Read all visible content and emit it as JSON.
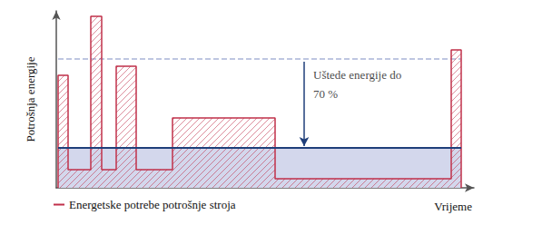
{
  "chart_data": {
    "type": "line",
    "x_label": "Vrijeme",
    "y_label": "Potrošnja energije",
    "xlim": [
      0,
      460
    ],
    "ylim": [
      0,
      195
    ],
    "xticks": [],
    "yticks": [],
    "tick_labels": false,
    "grid": false,
    "legend": "bottom left",
    "series": [
      {
        "type": "area",
        "color": "#1f3f7a",
        "x": [
          2,
          446
        ],
        "values": [
          44,
          44
        ]
      },
      {
        "type": "line",
        "color": "#a9b4d8",
        "line_style": "dashed",
        "x": [
          2,
          446
        ],
        "values": [
          142,
          142
        ]
      },
      {
        "type": "step",
        "name": "Energetske potrebe potrošnje stroja",
        "color": "#c0304a",
        "bins": [
          2,
          13,
          38,
          50,
          66,
          88,
          128,
          241,
          435,
          446
        ],
        "values": [
          124,
          20,
          189,
          20,
          134,
          20,
          77,
          10,
          152
        ]
      }
    ],
    "annotation": {
      "text": "Uštede energije do\n70 %",
      "x": 273,
      "y_from": 139,
      "y_to": 46
    }
  }
}
